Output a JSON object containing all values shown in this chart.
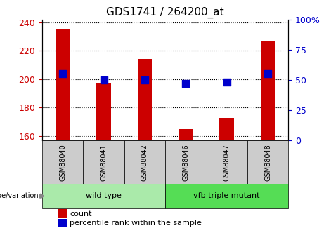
{
  "title": "GDS1741 / 264200_at",
  "categories": [
    "GSM88040",
    "GSM88041",
    "GSM88042",
    "GSM88046",
    "GSM88047",
    "GSM88048"
  ],
  "count_values": [
    235,
    197,
    214,
    165,
    173,
    227
  ],
  "percentile_values": [
    55,
    50,
    50,
    47,
    48,
    55
  ],
  "ylim_left": [
    157,
    242
  ],
  "ylim_right": [
    0,
    100
  ],
  "yticks_left": [
    160,
    180,
    200,
    220,
    240
  ],
  "yticks_right": [
    0,
    25,
    50,
    75,
    100
  ],
  "ytick_labels_right": [
    "0",
    "25",
    "50",
    "75",
    "100%"
  ],
  "bar_color": "#cc0000",
  "dot_color": "#0000cc",
  "bg_color": "#ffffff",
  "wild_type_label": "wild type",
  "mutant_label": "vfb triple mutant",
  "wild_type_color": "#aaeaaa",
  "mutant_color": "#55dd55",
  "genotype_label": "genotype/variation",
  "legend_count": "count",
  "legend_percentile": "percentile rank within the sample",
  "xticklabel_bg": "#cccccc",
  "bar_width": 0.35,
  "dot_size": 55
}
